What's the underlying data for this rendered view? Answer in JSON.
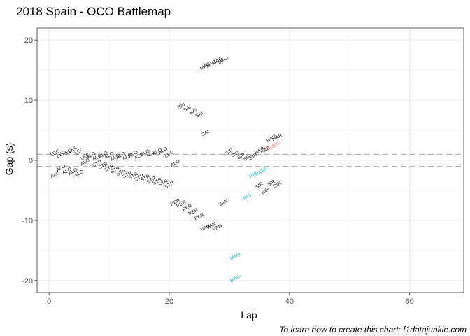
{
  "chart_data": {
    "type": "scatter",
    "title": "2018 Spain - OCO Battlemap",
    "xlabel": "Lap",
    "ylabel": "Gap (s)",
    "caption": "To learn how to create this chart: f1datajunkie.com",
    "xlim": [
      -2,
      69
    ],
    "ylim": [
      -22,
      22
    ],
    "x_ticks": [
      0,
      20,
      40,
      60
    ],
    "y_ticks": [
      -20,
      -10,
      0,
      10,
      20
    ],
    "grid": true,
    "reference_lines": [
      1,
      -1
    ],
    "colors": {
      "default": "#1a1a1a",
      "cyan": "#1fbfc4",
      "red": "#f8766d",
      "refline": "#b3b3b3",
      "grid": "#ebebeb",
      "panel_border": "#333333"
    },
    "points": [
      {
        "lap": 1,
        "gap": 1.2,
        "label": "LEC",
        "color": "default"
      },
      {
        "lap": 2,
        "gap": 1.0,
        "label": "LEC",
        "color": "default"
      },
      {
        "lap": 3,
        "gap": 1.3,
        "label": "LEC",
        "color": "default"
      },
      {
        "lap": 4,
        "gap": 1.8,
        "label": "LEC",
        "color": "default"
      },
      {
        "lap": 5,
        "gap": 1.5,
        "label": "LEC",
        "color": "default"
      },
      {
        "lap": 6,
        "gap": 0.6,
        "label": "LEC",
        "color": "default"
      },
      {
        "lap": 1,
        "gap": -2.4,
        "label": "ALO",
        "color": "default"
      },
      {
        "lap": 2,
        "gap": -1.3,
        "label": "ALO",
        "color": "default"
      },
      {
        "lap": 3,
        "gap": -1.8,
        "label": "ALO",
        "color": "default"
      },
      {
        "lap": 4,
        "gap": -1.9,
        "label": "ALO",
        "color": "default"
      },
      {
        "lap": 5,
        "gap": -2.2,
        "label": "ALO",
        "color": "default"
      },
      {
        "lap": 6,
        "gap": -0.3,
        "label": "ALO",
        "color": "default"
      },
      {
        "lap": 7,
        "gap": 0.8,
        "label": "ALO",
        "color": "default"
      },
      {
        "lap": 8,
        "gap": 0.5,
        "label": "ALO",
        "color": "default"
      },
      {
        "lap": 9,
        "gap": 0.9,
        "label": "ALO",
        "color": "default"
      },
      {
        "lap": 10,
        "gap": 0.8,
        "label": "ALO",
        "color": "default"
      },
      {
        "lap": 11,
        "gap": 0.5,
        "label": "ALO",
        "color": "default"
      },
      {
        "lap": 12,
        "gap": 0.8,
        "label": "ALO",
        "color": "default"
      },
      {
        "lap": 13,
        "gap": 0.6,
        "label": "ALO",
        "color": "default"
      },
      {
        "lap": 14,
        "gap": 1.0,
        "label": "ALO",
        "color": "default"
      },
      {
        "lap": 15,
        "gap": 0.7,
        "label": "ALO",
        "color": "default"
      },
      {
        "lap": 16,
        "gap": 1.2,
        "label": "ALO",
        "color": "default"
      },
      {
        "lap": 17,
        "gap": 1.0,
        "label": "ALO",
        "color": "default"
      },
      {
        "lap": 18,
        "gap": 1.4,
        "label": "ALO",
        "color": "default"
      },
      {
        "lap": 19,
        "gap": 1.6,
        "label": "ALO",
        "color": "default"
      },
      {
        "lap": 20,
        "gap": 1.0,
        "label": "LEC",
        "color": "default"
      },
      {
        "lap": 21,
        "gap": -0.5,
        "label": "ALO",
        "color": "default"
      },
      {
        "lap": 8,
        "gap": -0.6,
        "label": "STR",
        "color": "default"
      },
      {
        "lap": 9,
        "gap": -0.9,
        "label": "STR",
        "color": "default"
      },
      {
        "lap": 10,
        "gap": -1.3,
        "label": "STR",
        "color": "default"
      },
      {
        "lap": 11,
        "gap": -1.6,
        "label": "STR",
        "color": "default"
      },
      {
        "lap": 12,
        "gap": -2.0,
        "label": "STR",
        "color": "default"
      },
      {
        "lap": 13,
        "gap": -2.4,
        "label": "STR",
        "color": "default"
      },
      {
        "lap": 14,
        "gap": -2.6,
        "label": "STR",
        "color": "default"
      },
      {
        "lap": 15,
        "gap": -2.9,
        "label": "STR",
        "color": "default"
      },
      {
        "lap": 16,
        "gap": -3.0,
        "label": "STR",
        "color": "default"
      },
      {
        "lap": 17,
        "gap": -3.3,
        "label": "STR",
        "color": "default"
      },
      {
        "lap": 18,
        "gap": -3.5,
        "label": "STR",
        "color": "default"
      },
      {
        "lap": 19,
        "gap": -3.8,
        "label": "STR",
        "color": "default"
      },
      {
        "lap": 20,
        "gap": -4.1,
        "label": "STR",
        "color": "default"
      },
      {
        "lap": 21,
        "gap": -7.0,
        "label": "PER",
        "color": "default"
      },
      {
        "lap": 22,
        "gap": -7.3,
        "label": "PER",
        "color": "default"
      },
      {
        "lap": 23,
        "gap": -7.9,
        "label": "PER",
        "color": "default"
      },
      {
        "lap": 24,
        "gap": -8.6,
        "label": "PER",
        "color": "default"
      },
      {
        "lap": 25,
        "gap": -9.4,
        "label": "PER",
        "color": "default"
      },
      {
        "lap": 26,
        "gap": -11.2,
        "label": "VAN",
        "color": "default"
      },
      {
        "lap": 27,
        "gap": -10.9,
        "label": "VAN",
        "color": "default"
      },
      {
        "lap": 28,
        "gap": -11.2,
        "label": "VAN",
        "color": "default"
      },
      {
        "lap": 29,
        "gap": -7.1,
        "label": "VAN",
        "color": "default"
      },
      {
        "lap": 22,
        "gap": 9.0,
        "label": "SAI",
        "color": "default"
      },
      {
        "lap": 23,
        "gap": 8.6,
        "label": "SAI",
        "color": "default"
      },
      {
        "lap": 24,
        "gap": 8.1,
        "label": "SAI",
        "color": "default"
      },
      {
        "lap": 25,
        "gap": 7.6,
        "label": "SAI",
        "color": "default"
      },
      {
        "lap": 26,
        "gap": 4.5,
        "label": "SAI",
        "color": "default"
      },
      {
        "lap": 26,
        "gap": 15.6,
        "label": "MAG",
        "color": "default"
      },
      {
        "lap": 27,
        "gap": 16.0,
        "label": "MAG",
        "color": "default"
      },
      {
        "lap": 28,
        "gap": 16.5,
        "label": "MAG",
        "color": "default"
      },
      {
        "lap": 29,
        "gap": 16.6,
        "label": "MAG",
        "color": "default"
      },
      {
        "lap": 30,
        "gap": 1.4,
        "label": "SIR",
        "color": "default"
      },
      {
        "lap": 31,
        "gap": 1.0,
        "label": "SIR",
        "color": "default"
      },
      {
        "lap": 32,
        "gap": 0.7,
        "label": "SIR",
        "color": "default"
      },
      {
        "lap": 33,
        "gap": 0.4,
        "label": "SIR",
        "color": "default"
      },
      {
        "lap": 34,
        "gap": 0.6,
        "label": "SIR",
        "color": "default"
      },
      {
        "lap": 35,
        "gap": 1.6,
        "label": "HAR",
        "color": "default"
      },
      {
        "lap": 36,
        "gap": 1.7,
        "label": "HAR",
        "color": "default"
      },
      {
        "lap": 37,
        "gap": 3.6,
        "label": "HAR",
        "color": "default"
      },
      {
        "lap": 38,
        "gap": 3.8,
        "label": "HAR",
        "color": "default"
      },
      {
        "lap": 37,
        "gap": 2.1,
        "label": "RIC",
        "color": "red"
      },
      {
        "lap": 38,
        "gap": 2.7,
        "label": "RIC",
        "color": "red"
      },
      {
        "lap": 34,
        "gap": -2.4,
        "label": "RIC",
        "color": "cyan"
      },
      {
        "lap": 35,
        "gap": -2.1,
        "label": "RIC",
        "color": "cyan"
      },
      {
        "lap": 36,
        "gap": -1.5,
        "label": "RIC",
        "color": "cyan"
      },
      {
        "lap": 33,
        "gap": -6.1,
        "label": "RIC",
        "color": "cyan"
      },
      {
        "lap": 35,
        "gap": -4.2,
        "label": "SIR",
        "color": "default"
      },
      {
        "lap": 36,
        "gap": -5.1,
        "label": "SIR",
        "color": "default"
      },
      {
        "lap": 37,
        "gap": -3.8,
        "label": "SIR",
        "color": "default"
      },
      {
        "lap": 38,
        "gap": -4.1,
        "label": "SIR",
        "color": "default"
      },
      {
        "lap": 31,
        "gap": -16.0,
        "label": "MAG",
        "color": "cyan"
      },
      {
        "lap": 31,
        "gap": -19.7,
        "label": "MAG",
        "color": "cyan"
      }
    ]
  }
}
